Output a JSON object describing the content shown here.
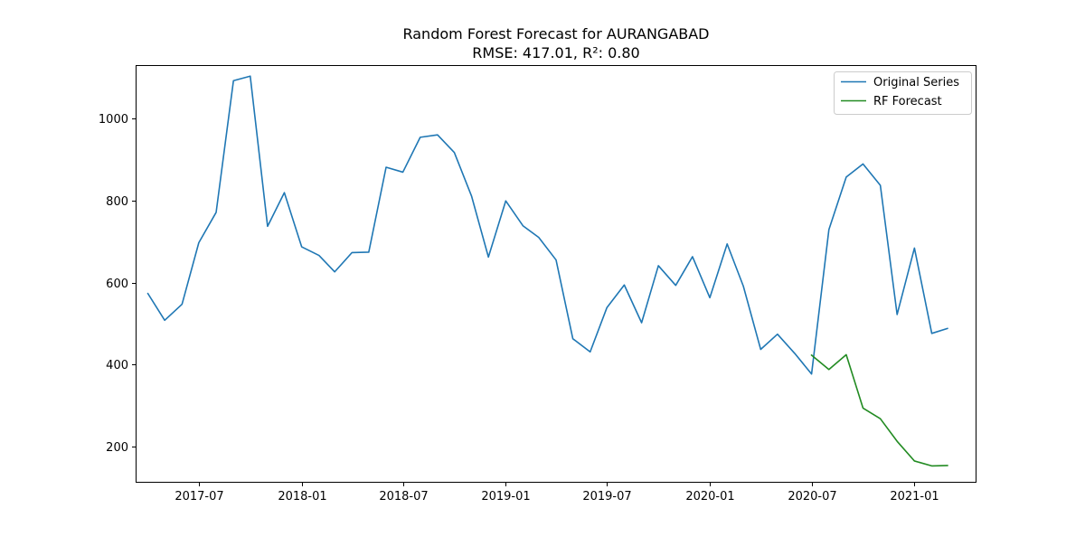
{
  "chart_data": {
    "type": "line",
    "title": "Random Forest Forecast for AURANGABAD",
    "subtitle": "RMSE: 417.01, R²: 0.80",
    "xlabel": "",
    "ylabel": "",
    "xlim": [
      "2017-03-10",
      "2021-04-22"
    ],
    "ylim": [
      112,
      1130
    ],
    "x_ticks": [
      "2017-07-01",
      "2018-01-01",
      "2018-07-01",
      "2019-01-01",
      "2019-07-01",
      "2020-01-01",
      "2020-07-01",
      "2021-01-01"
    ],
    "x_tick_labels": [
      "2017-07",
      "2018-01",
      "2018-07",
      "2019-01",
      "2019-07",
      "2020-01",
      "2020-07",
      "2021-01"
    ],
    "y_ticks": [
      200,
      400,
      600,
      800,
      1000
    ],
    "y_tick_labels": [
      "200",
      "400",
      "600",
      "800",
      "1000"
    ],
    "grid": false,
    "legend_position": "upper right",
    "series": [
      {
        "name": "Original Series",
        "color": "#1f77b4",
        "x": [
          "2017-04-01",
          "2017-05-01",
          "2017-06-01",
          "2017-07-01",
          "2017-08-01",
          "2017-09-01",
          "2017-10-01",
          "2017-11-01",
          "2017-12-01",
          "2018-01-01",
          "2018-02-01",
          "2018-03-01",
          "2018-04-01",
          "2018-05-01",
          "2018-06-01",
          "2018-07-01",
          "2018-08-01",
          "2018-09-01",
          "2018-10-01",
          "2018-11-01",
          "2018-12-01",
          "2019-01-01",
          "2019-02-01",
          "2019-03-01",
          "2019-04-01",
          "2019-05-01",
          "2019-06-01",
          "2019-07-01",
          "2019-08-01",
          "2019-09-01",
          "2019-10-01",
          "2019-11-01",
          "2019-12-01",
          "2020-01-01",
          "2020-02-01",
          "2020-03-01",
          "2020-04-01",
          "2020-05-01",
          "2020-06-01",
          "2020-07-01",
          "2020-08-01",
          "2020-09-01",
          "2020-10-01",
          "2020-11-01",
          "2020-12-01",
          "2021-01-01",
          "2021-02-01",
          "2021-03-01"
        ],
        "values": [
          573,
          508,
          547,
          697,
          771,
          1092,
          1103,
          737,
          819,
          687,
          666,
          626,
          673,
          674,
          881,
          869,
          954,
          960,
          917,
          810,
          662,
          799,
          738,
          710,
          655,
          463,
          431,
          539,
          594,
          502,
          641,
          593,
          663,
          563,
          694,
          591,
          437,
          474,
          427,
          377,
          729,
          857,
          889,
          837,
          522,
          684,
          476,
          488
        ]
      },
      {
        "name": "RF Forecast",
        "color": "#228b22",
        "x": [
          "2020-07-01",
          "2020-08-01",
          "2020-09-01",
          "2020-10-01",
          "2020-11-01",
          "2020-12-01",
          "2021-01-01",
          "2021-02-01",
          "2021-03-01"
        ],
        "values": [
          423,
          388,
          424,
          294,
          268,
          213,
          165,
          153,
          154
        ]
      }
    ]
  }
}
